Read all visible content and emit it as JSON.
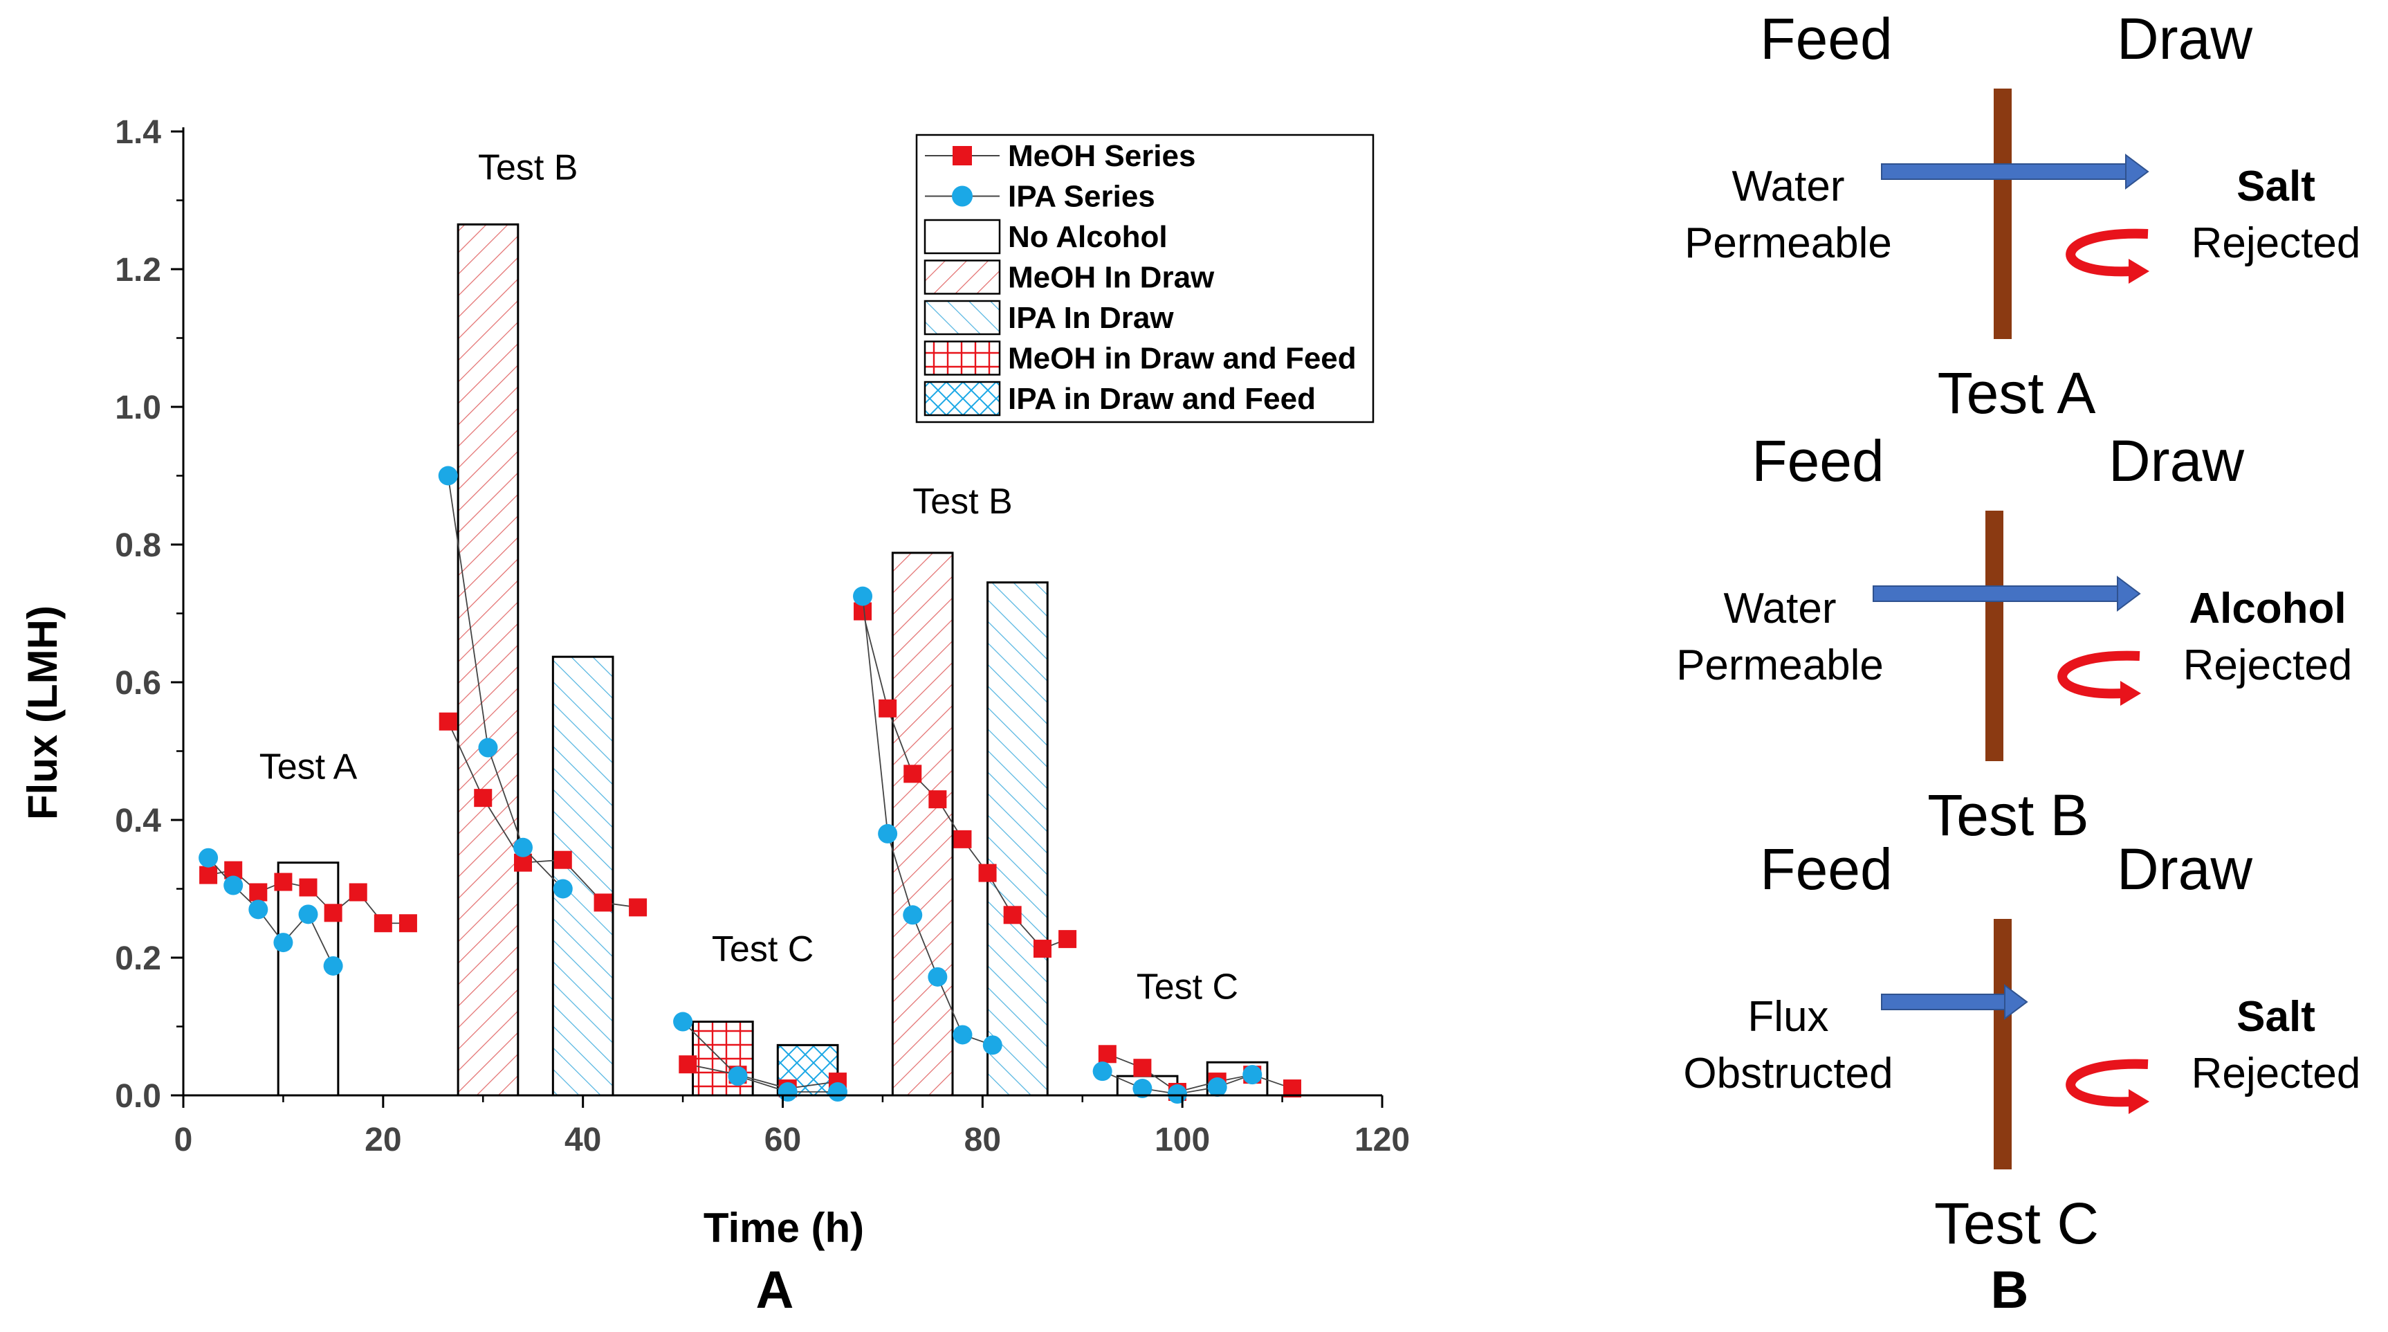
{
  "panel_a": {
    "panel_label": "A",
    "test_labels": [
      {
        "text": "Test A",
        "x": 12.5,
        "y": 0.46
      },
      {
        "text": "Test B",
        "x": 34.5,
        "y": 1.33
      },
      {
        "text": "Test C",
        "x": 58,
        "y": 0.195
      },
      {
        "text": "Test B",
        "x": 78,
        "y": 0.845
      },
      {
        "text": "Test C",
        "x": 100.5,
        "y": 0.14
      }
    ]
  },
  "chart_data": {
    "type": "scatter",
    "title": "",
    "xlabel": "Time (h)",
    "ylabel": "Flux (LMH)",
    "xlim": [
      0,
      120
    ],
    "ylim": [
      0,
      1.4
    ],
    "xticks": [
      0,
      20,
      40,
      60,
      80,
      100,
      120
    ],
    "yticks": [
      0.0,
      0.2,
      0.4,
      0.6,
      0.8,
      1.0,
      1.2,
      1.4
    ],
    "xtick_labels": [
      "0",
      "20",
      "40",
      "60",
      "80",
      "100",
      "120"
    ],
    "ytick_labels": [
      "0.0",
      "0.2",
      "0.4",
      "0.6",
      "0.8",
      "1.0",
      "1.2",
      "1.4"
    ],
    "legend_position": "top-right",
    "series": [
      {
        "name": "MeOH Series",
        "marker": "square",
        "color": "#e8131b",
        "segments": [
          [
            [
              2.5,
              0.32
            ],
            [
              5,
              0.327
            ],
            [
              7.5,
              0.295
            ],
            [
              10,
              0.31
            ],
            [
              12.5,
              0.302
            ],
            [
              15,
              0.265
            ],
            [
              17.5,
              0.295
            ],
            [
              20,
              0.25
            ],
            [
              22.5,
              0.25
            ]
          ],
          [
            [
              26.5,
              0.543
            ],
            [
              30,
              0.432
            ],
            [
              34,
              0.338
            ],
            [
              38,
              0.342
            ],
            [
              42,
              0.28
            ],
            [
              45.5,
              0.273
            ]
          ],
          [
            [
              50.5,
              0.045
            ],
            [
              55.5,
              0.03
            ],
            [
              60.5,
              0.01
            ],
            [
              65.5,
              0.02
            ]
          ],
          [
            [
              68,
              0.703
            ],
            [
              70.5,
              0.562
            ],
            [
              73,
              0.467
            ],
            [
              75.5,
              0.43
            ],
            [
              78,
              0.372
            ],
            [
              80.5,
              0.323
            ],
            [
              83,
              0.262
            ],
            [
              86,
              0.213
            ],
            [
              88.5,
              0.227
            ]
          ],
          [
            [
              92.5,
              0.06
            ],
            [
              96,
              0.04
            ],
            [
              99.5,
              0.005
            ],
            [
              103.5,
              0.02
            ],
            [
              107,
              0.03
            ],
            [
              111,
              0.01
            ]
          ]
        ]
      },
      {
        "name": "IPA Series",
        "marker": "circle",
        "color": "#1ba8e6",
        "segments": [
          [
            [
              2.5,
              0.345
            ],
            [
              5,
              0.305
            ],
            [
              7.5,
              0.27
            ],
            [
              10,
              0.222
            ],
            [
              12.5,
              0.263
            ],
            [
              15,
              0.188
            ]
          ],
          [
            [
              26.5,
              0.9
            ],
            [
              30.5,
              0.505
            ],
            [
              34,
              0.36
            ],
            [
              38,
              0.3
            ]
          ],
          [
            [
              50,
              0.107
            ],
            [
              55.5,
              0.028
            ],
            [
              60.5,
              0.005
            ],
            [
              65.5,
              0.005
            ]
          ],
          [
            [
              68,
              0.725
            ],
            [
              70.5,
              0.38
            ],
            [
              73,
              0.262
            ],
            [
              75.5,
              0.172
            ],
            [
              78,
              0.088
            ],
            [
              81,
              0.073
            ]
          ],
          [
            [
              92,
              0.035
            ],
            [
              96,
              0.01
            ],
            [
              99.5,
              0.002
            ],
            [
              103.5,
              0.012
            ],
            [
              107,
              0.03
            ]
          ]
        ]
      }
    ],
    "bars": [
      {
        "x0": 9.5,
        "x1": 15.5,
        "value": 0.338,
        "pattern": "No Alcohol"
      },
      {
        "x0": 27.5,
        "x1": 33.5,
        "value": 1.265,
        "pattern": "MeOH In Draw"
      },
      {
        "x0": 37,
        "x1": 43,
        "value": 0.637,
        "pattern": "IPA In Draw"
      },
      {
        "x0": 51,
        "x1": 57,
        "value": 0.107,
        "pattern": "MeOH in Draw and Feed"
      },
      {
        "x0": 59.5,
        "x1": 65.5,
        "value": 0.073,
        "pattern": "IPA in Draw and Feed"
      },
      {
        "x0": 71,
        "x1": 77,
        "value": 0.788,
        "pattern": "MeOH In Draw"
      },
      {
        "x0": 80.5,
        "x1": 86.5,
        "value": 0.745,
        "pattern": "IPA In Draw"
      },
      {
        "x0": 93.5,
        "x1": 99.5,
        "value": 0.028,
        "pattern": "No Alcohol"
      },
      {
        "x0": 102.5,
        "x1": 108.5,
        "value": 0.048,
        "pattern": "No Alcohol"
      }
    ],
    "legend": [
      {
        "label": "MeOH Series",
        "kind": "line-square"
      },
      {
        "label": "IPA Series",
        "kind": "line-circle"
      },
      {
        "label": "No Alcohol",
        "kind": "pattern-none"
      },
      {
        "label": "MeOH In Draw",
        "kind": "pattern-meoh"
      },
      {
        "label": "IPA In Draw",
        "kind": "pattern-ipa"
      },
      {
        "label": "MeOH in Draw and Feed",
        "kind": "pattern-meoh-grid"
      },
      {
        "label": "IPA in Draw and Feed",
        "kind": "pattern-ipa-cross"
      }
    ]
  },
  "panel_b": {
    "panel_label": "B",
    "diagrams": [
      {
        "feed": "Feed",
        "draw": "Draw",
        "left_1": "Water",
        "left_2": "Permeable",
        "right_1": "Salt",
        "right_2": "Rejected",
        "test": "Test A",
        "arrow": "full"
      },
      {
        "feed": "Feed",
        "draw": "Draw",
        "left_1": "Water",
        "left_2": "Permeable",
        "right_1": "Alcohol",
        "right_2": "Rejected",
        "test": "Test B",
        "arrow": "full"
      },
      {
        "feed": "Feed",
        "draw": "Draw",
        "left_1": "Flux",
        "left_2": "Obstructed",
        "right_1": "Salt",
        "right_2": "Rejected",
        "test": "Test C",
        "arrow": "short"
      }
    ]
  },
  "colors": {
    "meoh": "#e8131b",
    "ipa": "#1ba8e6",
    "membrane": "#8b3a12",
    "flow_arrow": "#4472c4",
    "reject_arrow": "#e8131b",
    "axis": "#000000",
    "meoh_hatch": "#e26b6b",
    "ipa_hatch": "#4fb3e0"
  }
}
